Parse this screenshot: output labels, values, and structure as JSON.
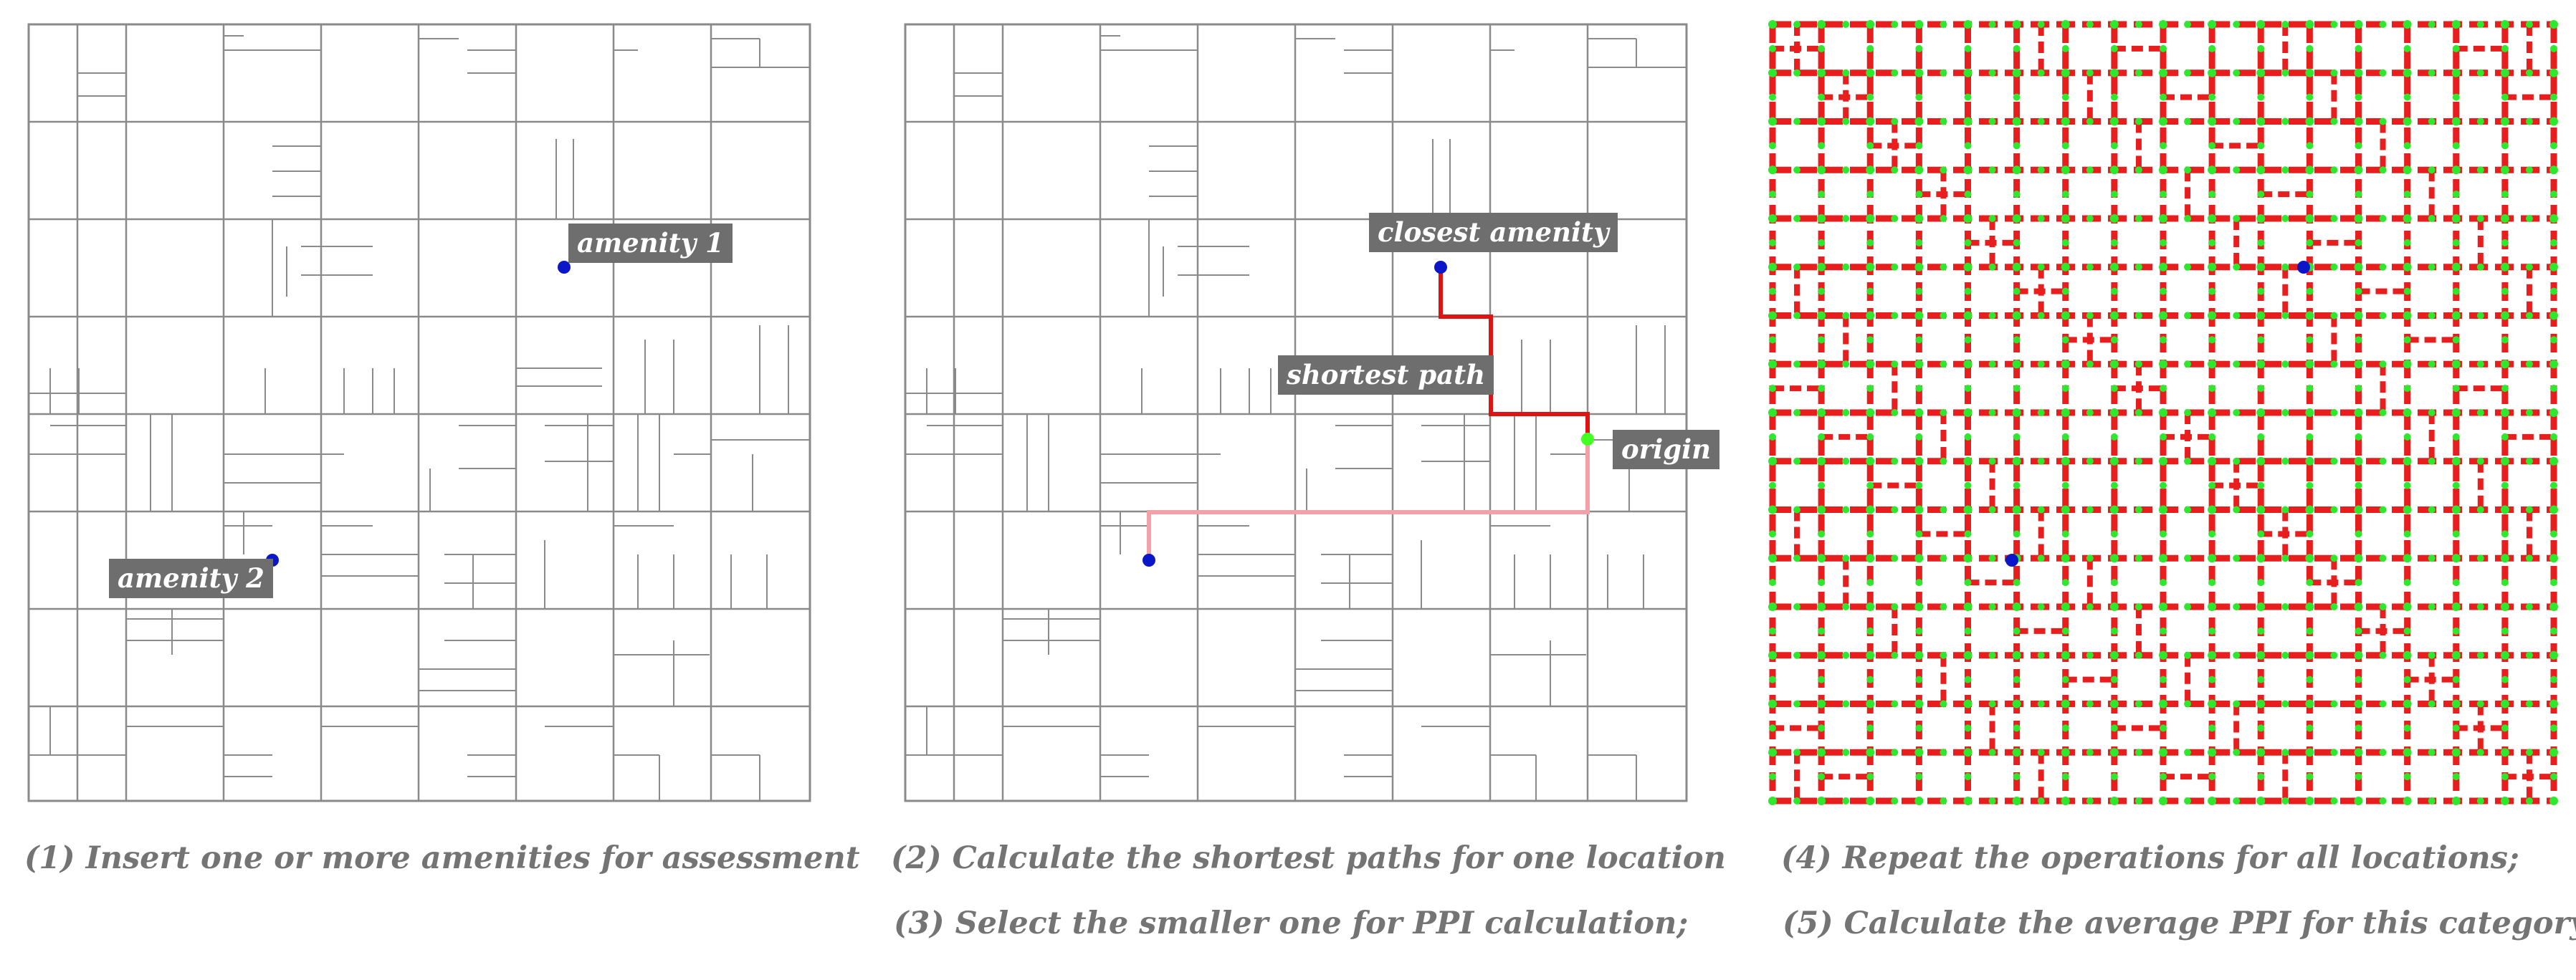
{
  "panels": {
    "p1": {
      "labels": {
        "amenity1": "amenity 1",
        "amenity2": "amenity 2"
      },
      "caption": "(1) Insert one or more amenities for assessment"
    },
    "p2": {
      "labels": {
        "closest": "closest amenity",
        "shortest": "shortest path",
        "origin": "origin"
      },
      "caption1": "(2) Calculate the shortest paths for one location",
      "caption2": "(3) Select the smaller one for PPI calculation;"
    },
    "p3": {
      "caption1": "(4) Repeat the operations for all locations;",
      "caption2": "(5) Calculate the average PPI for this category"
    }
  },
  "colors": {
    "grid_line": "#8a8a8a",
    "amenity_dot": "#0b16c8",
    "origin_dot": "#44ff22",
    "shortest_path": "#dc1414",
    "alternative_path": "#f4a0a8",
    "network_edge": "#e81e1e",
    "network_node": "#2ee82e",
    "label_bg": "#6e6e6e",
    "caption_text": "#747474"
  }
}
